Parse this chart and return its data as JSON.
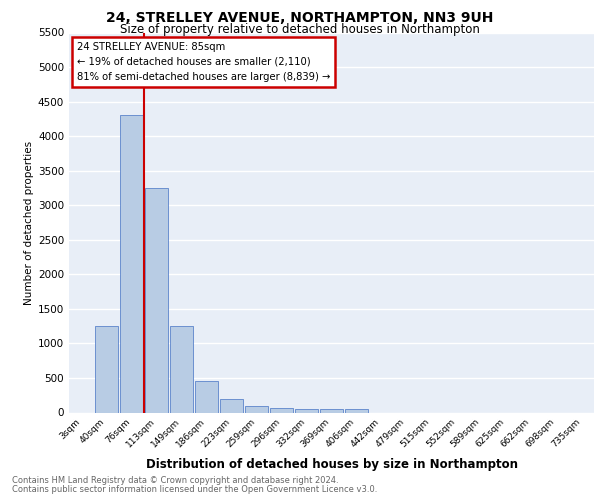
{
  "title": "24, STRELLEY AVENUE, NORTHAMPTON, NN3 9UH",
  "subtitle": "Size of property relative to detached houses in Northampton",
  "xlabel": "Distribution of detached houses by size in Northampton",
  "ylabel": "Number of detached properties",
  "footnote1": "Contains HM Land Registry data © Crown copyright and database right 2024.",
  "footnote2": "Contains public sector information licensed under the Open Government Licence v3.0.",
  "categories": [
    "3sqm",
    "40sqm",
    "76sqm",
    "113sqm",
    "149sqm",
    "186sqm",
    "223sqm",
    "259sqm",
    "296sqm",
    "332sqm",
    "369sqm",
    "406sqm",
    "442sqm",
    "479sqm",
    "515sqm",
    "552sqm",
    "589sqm",
    "625sqm",
    "662sqm",
    "698sqm",
    "735sqm"
  ],
  "values": [
    0,
    1250,
    4300,
    3250,
    1250,
    450,
    200,
    100,
    70,
    50,
    50,
    50,
    0,
    0,
    0,
    0,
    0,
    0,
    0,
    0,
    0
  ],
  "bar_color": "#b8cce4",
  "bar_edge_color": "#4472c4",
  "annotation_title": "24 STRELLEY AVENUE: 85sqm",
  "annotation_line1": "← 19% of detached houses are smaller (2,110)",
  "annotation_line2": "81% of semi-detached houses are larger (8,839) →",
  "ylim": [
    0,
    5500
  ],
  "yticks": [
    0,
    500,
    1000,
    1500,
    2000,
    2500,
    3000,
    3500,
    4000,
    4500,
    5000,
    5500
  ],
  "red_line_color": "#cc0000",
  "annotation_box_color": "#cc0000",
  "bg_color": "#e8eef7",
  "grid_color": "#ffffff"
}
